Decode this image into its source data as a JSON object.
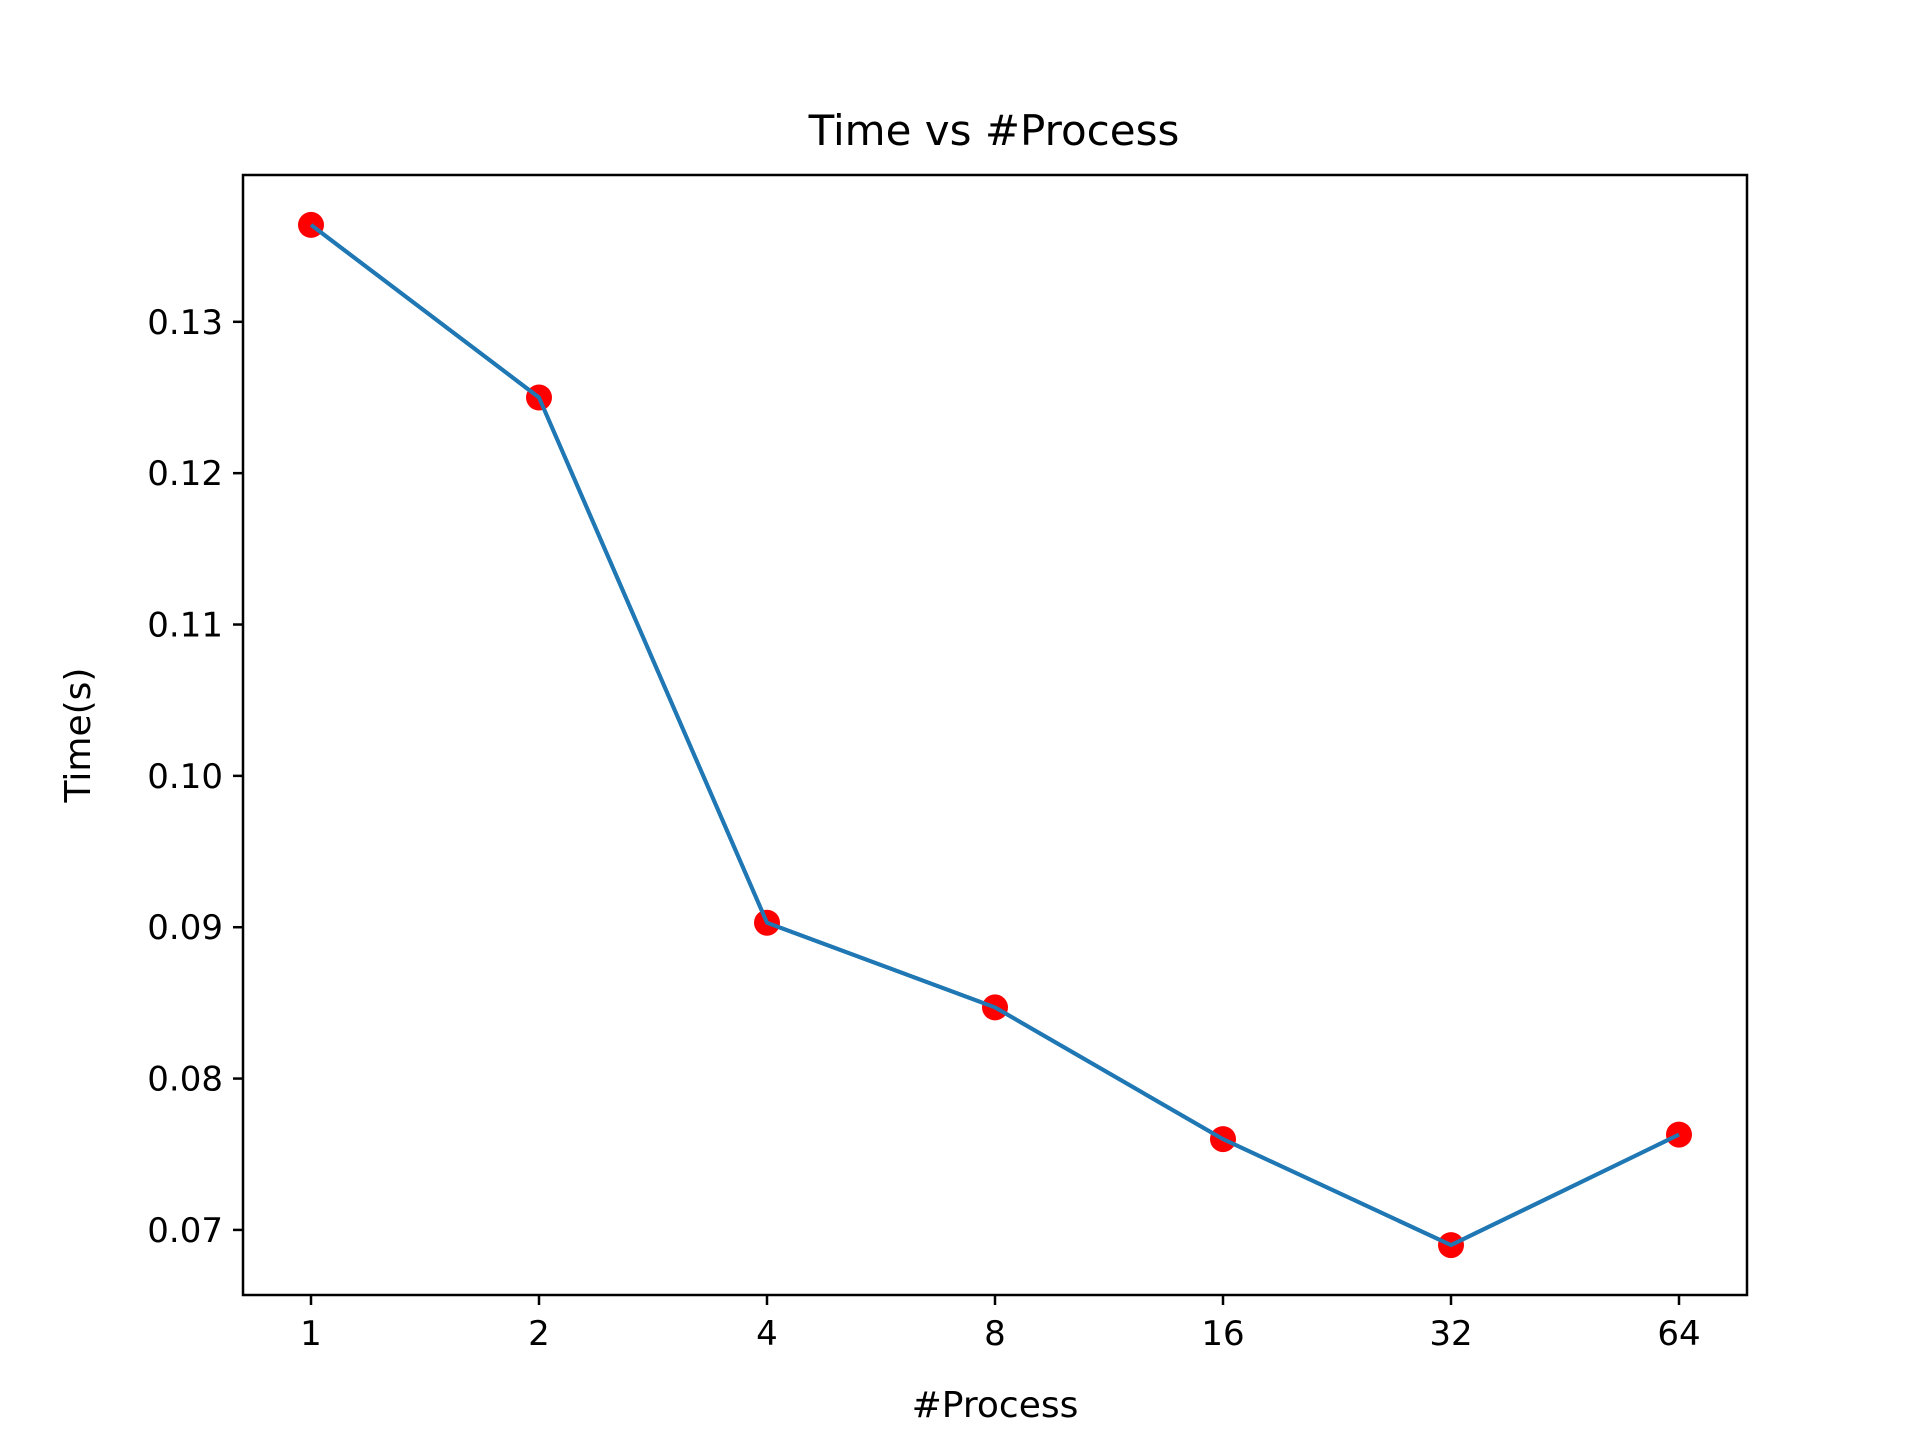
{
  "chart_data": {
    "type": "line",
    "title": "Time vs #Process",
    "xlabel": "#Process",
    "ylabel": "Time(s)",
    "categories": [
      "1",
      "2",
      "4",
      "8",
      "16",
      "32",
      "64"
    ],
    "series": [
      {
        "values": [
          0.1364,
          0.125,
          0.0903,
          0.0847,
          0.076,
          0.069,
          0.0763
        ],
        "line_color": "#1f77b4",
        "marker_color": "#ff0000"
      }
    ],
    "ylim": [
      0.0657,
      0.1397
    ],
    "yticks": [
      0.07,
      0.08,
      0.09,
      0.1,
      0.11,
      0.12,
      0.13
    ],
    "ytick_labels": [
      "0.07",
      "0.08",
      "0.09",
      "0.10",
      "0.11",
      "0.12",
      "0.13"
    ],
    "grid": false,
    "legend": "none"
  }
}
